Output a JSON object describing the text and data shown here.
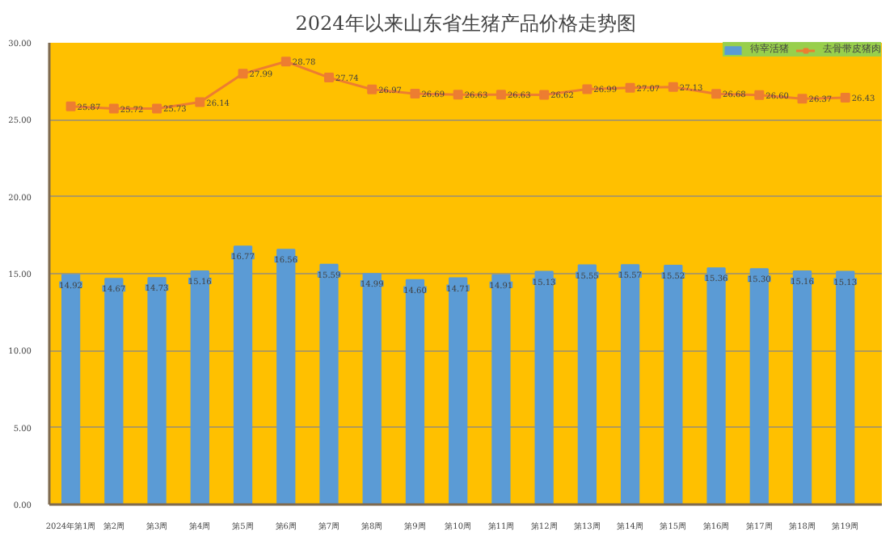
{
  "chart_data": {
    "type": "bar",
    "title": "2024年以来山东省生猪产品价格走势图",
    "categories": [
      "2024年第1周",
      "第2周",
      "第3周",
      "第4周",
      "第5周",
      "第6周",
      "第7周",
      "第8周",
      "第9周",
      "第10周",
      "第11周",
      "第12周",
      "第13周",
      "第14周",
      "第15周",
      "第16周",
      "第17周",
      "第18周",
      "第19周"
    ],
    "series": [
      {
        "name": "待宰活猪",
        "color": "#5b9bd5",
        "values": [
          14.92,
          14.67,
          14.73,
          15.16,
          16.77,
          16.56,
          15.59,
          14.99,
          14.6,
          14.71,
          14.91,
          15.13,
          15.55,
          15.57,
          15.52,
          15.36,
          15.3,
          15.16,
          15.13
        ],
        "value_labels": [
          "14.92",
          "14.67",
          "14.73",
          "15.16",
          "16.77",
          "16.56",
          "15.59",
          "14.99",
          "14.60",
          "14.71",
          "14.91",
          "15.13",
          "15.55",
          "15.57",
          "15.52",
          "15.36",
          "15.30",
          "15.16",
          "15.13"
        ]
      },
      {
        "name": "去骨带皮猪肉",
        "type": "line",
        "color": "#ed7d31",
        "marker": "square",
        "values": [
          25.87,
          25.72,
          25.73,
          26.14,
          27.99,
          28.78,
          27.74,
          26.97,
          26.69,
          26.63,
          26.63,
          26.62,
          26.99,
          27.07,
          27.13,
          26.68,
          26.6,
          26.37,
          26.43
        ],
        "value_labels": [
          "25.87",
          "25.72",
          "25.73",
          "26.14",
          "27.99",
          "28.78",
          "27.74",
          "26.97",
          "26.69",
          "26.63",
          "26.63",
          "26.62",
          "26.99",
          "27.07",
          "27.13",
          "26.68",
          "26.60",
          "26.37",
          "26.43"
        ]
      }
    ],
    "ylim": [
      0,
      30
    ],
    "yticks": [
      {
        "value": 0,
        "label": "0.00"
      },
      {
        "value": 5,
        "label": "5.00"
      },
      {
        "value": 10,
        "label": "10.00"
      },
      {
        "value": 15,
        "label": "15.00"
      },
      {
        "value": 20,
        "label": "20.00"
      },
      {
        "value": 25,
        "label": "25.00"
      },
      {
        "value": 30,
        "label": "30.00"
      }
    ],
    "grid": "y",
    "legend": "top right"
  }
}
